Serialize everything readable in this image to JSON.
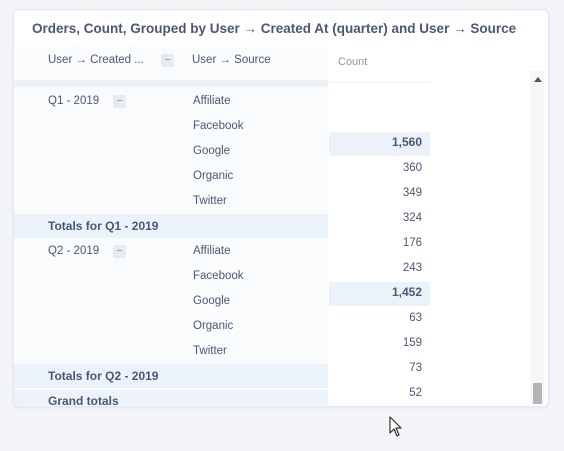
{
  "card": {
    "title": "Orders, Count, Grouped by User → Created At (quarter) and User → Source"
  },
  "columns": {
    "created_at": "User → Created ...",
    "source": "User → Source",
    "count": "Count"
  },
  "groups": [
    {
      "label": "Q1 - 2019",
      "sources": [
        "Affiliate",
        "Facebook",
        "Google",
        "Organic",
        "Twitter"
      ],
      "total_label": "Totals for Q1 - 2019"
    },
    {
      "label": "Q2 - 2019",
      "sources": [
        "Affiliate",
        "Facebook",
        "Google",
        "Organic",
        "Twitter"
      ],
      "total_label": "Totals for Q2 - 2019"
    }
  ],
  "grand_total_label": "Grand totals",
  "counts": [
    "1,560",
    "360",
    "349",
    "324",
    "176",
    "243",
    "1,452",
    "63",
    "159",
    "73",
    "52"
  ],
  "collapse_glyph": "−",
  "colors": {
    "accent_band": "#ebf2f9",
    "text": "#4c5773",
    "muted": "#8a96a6"
  }
}
